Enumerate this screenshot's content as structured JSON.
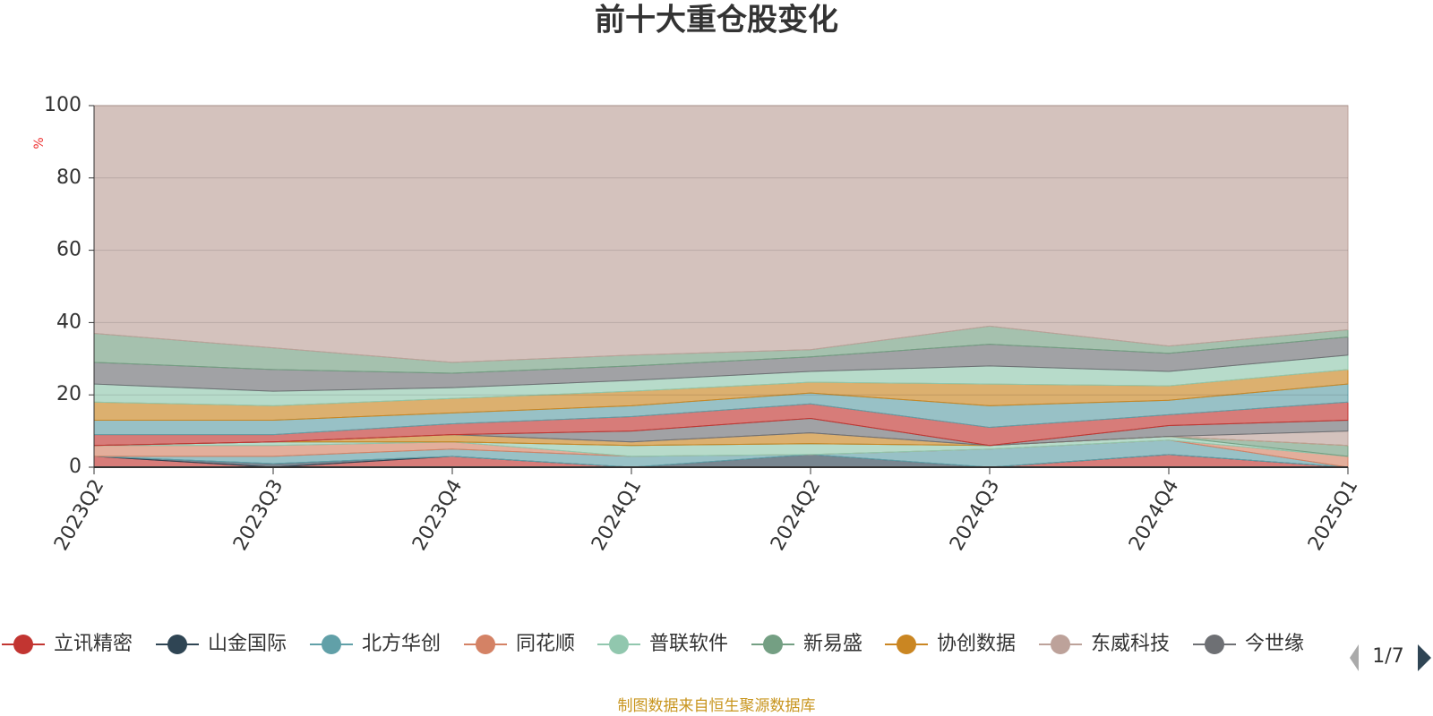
{
  "chart_data": {
    "type": "stacked-area",
    "title": "前十大重仓股变化",
    "y_label": "%",
    "categories": [
      "2023Q2",
      "2023Q3",
      "2023Q4",
      "2024Q1",
      "2024Q2",
      "2024Q3",
      "2024Q4",
      "2025Q1"
    ],
    "ylim": [
      0,
      100
    ],
    "yticks": [
      0,
      20,
      40,
      60,
      80,
      100
    ],
    "grid": true,
    "legend_position": "bottom",
    "legend_page": "1/7",
    "source": "制图数据来自恒生聚源数据库",
    "series": [
      {
        "name": "立讯精密",
        "color": "#c23531",
        "values": [
          3,
          0,
          3,
          0,
          0,
          0,
          3.5,
          0
        ]
      },
      {
        "name": "山金国际",
        "color": "#2f4554",
        "values": [
          0,
          1,
          0,
          0,
          3.5,
          0,
          0,
          0
        ]
      },
      {
        "name": "北方华创",
        "color": "#61a0a8",
        "values": [
          0,
          2,
          2,
          3,
          0,
          5,
          4,
          0
        ]
      },
      {
        "name": "同花顺",
        "color": "#d48265",
        "values": [
          3,
          3,
          2,
          0,
          0,
          0,
          0,
          3
        ]
      },
      {
        "name": "普联软件",
        "color": "#91c7ae",
        "values": [
          0,
          1,
          0,
          3,
          3,
          1,
          1,
          0
        ]
      },
      {
        "name": "新易盛",
        "color": "#749f83",
        "values": [
          0,
          0,
          0,
          0,
          0,
          0,
          0,
          3
        ]
      },
      {
        "name": "协创数据",
        "color": "#ca8622",
        "values": [
          0,
          0,
          2,
          1,
          3,
          0,
          0,
          0
        ]
      },
      {
        "name": "东威科技",
        "color": "#bda29a",
        "values": [
          0,
          0,
          0,
          0,
          0,
          0,
          0,
          4
        ]
      },
      {
        "name": "今世缘",
        "color": "#6e7074",
        "values": [
          0,
          0,
          0,
          3,
          4,
          0,
          3,
          3
        ]
      },
      {
        "color": "#c23531",
        "values": [
          3,
          2,
          3,
          4,
          4,
          5,
          3,
          5
        ]
      },
      {
        "color": "#61a0a8",
        "values": [
          4,
          4,
          3,
          3,
          3,
          6,
          4,
          5
        ]
      },
      {
        "color": "#ca8622",
        "values": [
          5,
          4,
          4,
          4,
          3,
          6,
          4,
          4
        ]
      },
      {
        "color": "#91c7ae",
        "values": [
          5,
          4,
          3,
          3,
          3,
          5,
          4,
          4
        ]
      },
      {
        "color": "#6e7074",
        "values": [
          6,
          6,
          4,
          4,
          4,
          6,
          5,
          5
        ]
      },
      {
        "color": "#749f83",
        "values": [
          8,
          6,
          3,
          3,
          2,
          5,
          2,
          2
        ]
      },
      {
        "color": "#bda29a",
        "values": [
          63,
          67,
          71,
          69,
          67.5,
          61,
          66.5,
          62
        ]
      }
    ]
  }
}
